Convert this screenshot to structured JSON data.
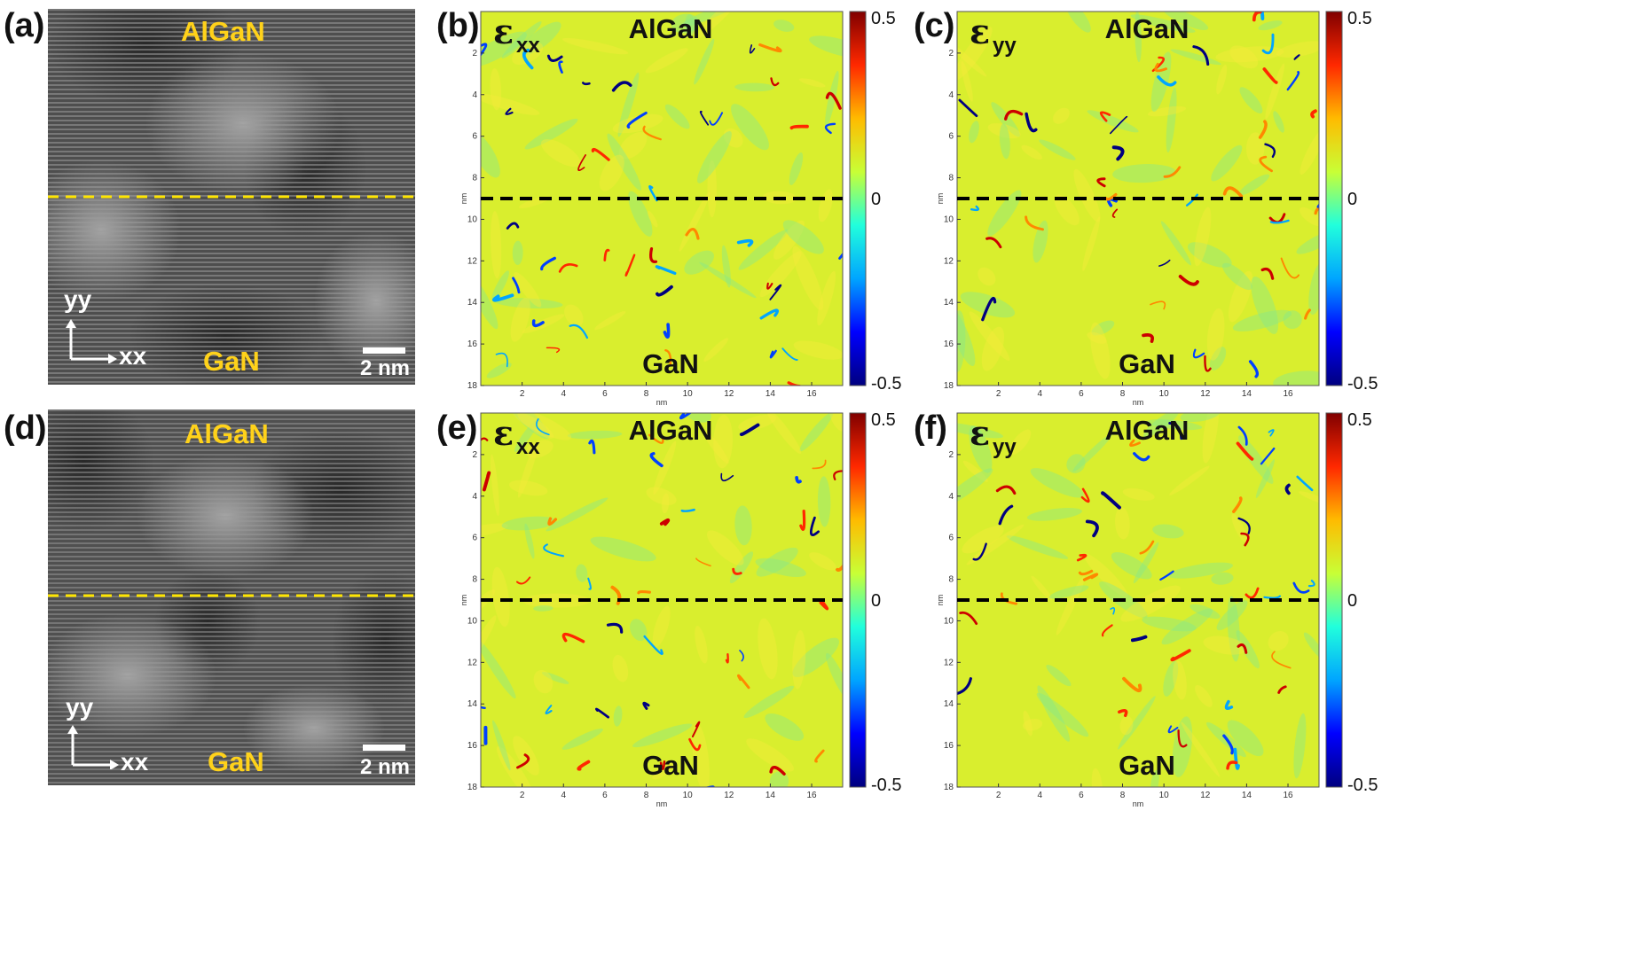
{
  "panels": {
    "a": {
      "letter": "(a)",
      "top_label": "AlGaN",
      "bottom_label": "GaN",
      "axis_y": "yy",
      "axis_x": "xx",
      "scale": "2 nm"
    },
    "b": {
      "letter": "(b)",
      "component": "ε",
      "subscript": "xx",
      "top_label": "AlGaN",
      "bottom_label": "GaN"
    },
    "c": {
      "letter": "(c)",
      "component": "ε",
      "subscript": "yy",
      "top_label": "AlGaN",
      "bottom_label": "GaN"
    },
    "d": {
      "letter": "(d)",
      "top_label": "AlGaN",
      "bottom_label": "GaN",
      "axis_y": "yy",
      "axis_x": "xx",
      "scale": "2 nm"
    },
    "e": {
      "letter": "(e)",
      "component": "ε",
      "subscript": "xx",
      "top_label": "AlGaN",
      "bottom_label": "GaN"
    },
    "f": {
      "letter": "(f)",
      "component": "ε",
      "subscript": "yy",
      "top_label": "AlGaN",
      "bottom_label": "GaN"
    }
  },
  "map_axes": {
    "x_ticks": [
      "2",
      "4",
      "6",
      "8",
      "10",
      "12",
      "14",
      "16"
    ],
    "y_ticks": [
      "2",
      "4",
      "6",
      "8",
      "10",
      "12",
      "14",
      "16",
      "18"
    ],
    "unit": "nm",
    "x_range": [
      0,
      17.5
    ],
    "y_range": [
      0,
      18
    ],
    "interface_y": 9
  },
  "colorbar": {
    "ticks": [
      "0.5",
      "0",
      "-0.5"
    ],
    "range": [
      -0.5,
      0.5
    ],
    "colors": [
      "#00007f",
      "#0000ff",
      "#00a5ff",
      "#21ffdc",
      "#c8ff36",
      "#ffbb00",
      "#ff2800",
      "#800000"
    ]
  },
  "colors": {
    "map_background": "#d9ee2e",
    "tem_background": "#5a5a5a",
    "interface_line_tem": "#ffe600",
    "interface_line_map": "#000000"
  }
}
